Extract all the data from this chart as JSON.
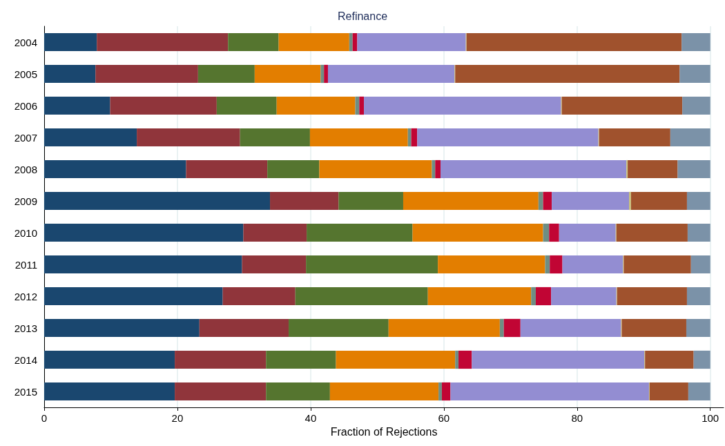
{
  "chart_data": {
    "type": "bar",
    "title": "Refinance",
    "xlabel": "Fraction of Rejections",
    "orientation": "horizontal",
    "stacked": true,
    "grid": "x",
    "categories": [
      "2004",
      "2005",
      "2006",
      "2007",
      "2008",
      "2009",
      "2010",
      "2011",
      "2012",
      "2013",
      "2014",
      "2015"
    ],
    "xlim": [
      0,
      102
    ],
    "xticks": [
      0,
      20,
      40,
      60,
      80,
      100
    ],
    "series": [
      {
        "color": "#1a476f",
        "values": [
          7.9,
          7.7,
          9.9,
          13.9,
          21.3,
          33.9,
          29.9,
          29.7,
          26.8,
          23.3,
          19.6,
          19.6
        ]
      },
      {
        "color": "#90353b",
        "values": [
          19.7,
          15.4,
          16.0,
          15.5,
          12.2,
          10.3,
          9.5,
          9.6,
          10.9,
          13.4,
          13.7,
          13.7
        ]
      },
      {
        "color": "#55752f",
        "values": [
          7.6,
          8.5,
          9.0,
          10.5,
          7.8,
          9.7,
          15.9,
          19.8,
          19.9,
          15.0,
          10.5,
          9.6
        ]
      },
      {
        "color": "#e37e00",
        "values": [
          10.6,
          9.9,
          11.8,
          14.7,
          16.9,
          20.3,
          19.6,
          16.1,
          15.5,
          16.7,
          17.9,
          16.3
        ]
      },
      {
        "color": "#6e8e84",
        "values": [
          0.5,
          0.5,
          0.6,
          0.5,
          0.5,
          0.7,
          0.9,
          0.7,
          0.7,
          0.6,
          0.5,
          0.5
        ]
      },
      {
        "color": "#c10534",
        "values": [
          0.7,
          0.6,
          0.7,
          0.9,
          0.8,
          1.3,
          1.5,
          1.9,
          2.3,
          2.5,
          2.0,
          1.3
        ]
      },
      {
        "color": "#938dd2",
        "values": [
          16.3,
          19.0,
          29.6,
          27.2,
          27.9,
          11.6,
          8.5,
          9.1,
          9.8,
          15.1,
          25.9,
          29.8
        ]
      },
      {
        "color": "#cac27e",
        "values": [
          0.1,
          0.1,
          0.1,
          0.1,
          0.2,
          0.3,
          0.1,
          0.1,
          0.1,
          0.1,
          0.1,
          0.1
        ]
      },
      {
        "color": "#a0522d",
        "values": [
          32.3,
          33.7,
          18.1,
          10.7,
          7.5,
          8.4,
          10.7,
          10.1,
          10.5,
          9.7,
          7.3,
          5.8
        ]
      },
      {
        "color": "#7b92a8",
        "values": [
          4.3,
          4.6,
          4.2,
          6.0,
          4.9,
          3.5,
          3.4,
          2.9,
          3.5,
          3.6,
          2.5,
          3.3
        ]
      }
    ]
  }
}
